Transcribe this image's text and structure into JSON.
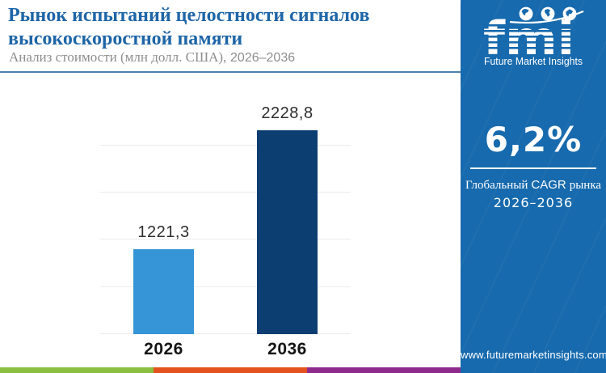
{
  "header": {
    "title_line1": "Рынок испытаний целостности сигналов",
    "title_line2": "высокоскоростной памяти",
    "subtitle_text": "Анализ стоимости (млн долл. США),",
    "subtitle_range": "2026–2036"
  },
  "chart_data": {
    "type": "bar",
    "title": "Рынок испытаний целостности сигналов высокоскоростной памяти",
    "subtitle": "Анализ стоимости (млн долл. США), 2026–2036",
    "unit": "млн долл. США",
    "categories": [
      "2026",
      "2036"
    ],
    "values": [
      1221.3,
      2228.8
    ],
    "bars": [
      {
        "year": "2026",
        "value": 1221.3,
        "label_display": "1221,3",
        "color": "#3595d6"
      },
      {
        "year": "2036",
        "value": 2228.8,
        "label_display": "2228,8",
        "color": "#0d3e72"
      }
    ],
    "xlabel": "",
    "ylabel": "",
    "ylim": [
      500,
      2100
    ],
    "gridline_values": [
      500,
      900,
      1300,
      1700,
      2100
    ],
    "grid": "horizontal",
    "legend": "none"
  },
  "sidebar": {
    "background_color": "#176aad",
    "logo": {
      "acronym": "fmi",
      "name": "Future Market Insights"
    },
    "cagr_value": "6,2%",
    "cagr_caption_prefix": "Глобальный",
    "cagr_caption_acronym": "CAGR",
    "cagr_caption_suffix": "рынка",
    "cagr_caption_range": "2026–2036",
    "website": "www.futuremarketinsights.com"
  },
  "footer": {
    "colors": [
      "#8abf3f",
      "#e4531f",
      "#8e2a8c"
    ]
  },
  "colors": {
    "title_blue": "#1e65a7",
    "header_rule": "#4d80b1",
    "bar_2026": "#3595d6",
    "bar_2036": "#0d3e72",
    "sidebar_blue": "#176aad",
    "gridline": "#f0eaea"
  }
}
